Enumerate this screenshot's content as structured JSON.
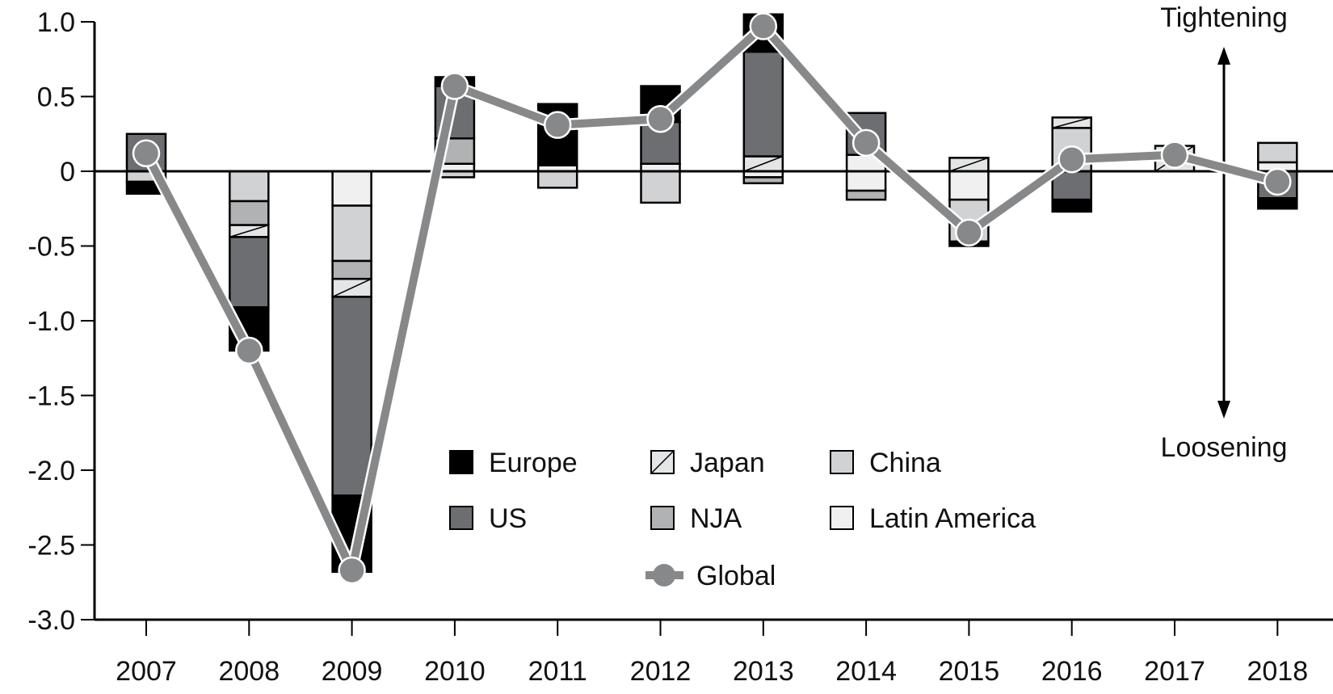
{
  "chart_data": {
    "type": "bar",
    "subtype": "stacked bar with line overlay",
    "title": "",
    "xlabel": "",
    "ylabel": "",
    "ylim": [
      -3.0,
      1.0
    ],
    "yticks": [
      "1.0",
      "0.5",
      "0",
      "-0.5",
      "-1.0",
      "-1.5",
      "-2.0",
      "-2.5",
      "-3.0"
    ],
    "ytick_values": [
      1.0,
      0.5,
      0,
      -0.5,
      -1.0,
      -1.5,
      -2.0,
      -2.5,
      -3.0
    ],
    "categories": [
      "2007",
      "2008",
      "2009",
      "2010",
      "2011",
      "2012",
      "2013",
      "2014",
      "2015",
      "2016",
      "2017",
      "2018"
    ],
    "grid": false,
    "legend_position": "bottom-center inside plot",
    "series": [
      {
        "name": "Europe",
        "color": "#000000"
      },
      {
        "name": "Japan",
        "color": "#e4e5e6",
        "pattern": "diagonal"
      },
      {
        "name": "China",
        "color": "#d1d2d4"
      },
      {
        "name": "US",
        "color": "#6d6e71"
      },
      {
        "name": "NJA",
        "color": "#b1b2b4"
      },
      {
        "name": "Latin America",
        "color": "#f0f0f0"
      }
    ],
    "stacks": [
      {
        "year": "2007",
        "pos": [
          [
            "US",
            0.25
          ]
        ],
        "neg": [
          [
            "China",
            -0.07
          ],
          [
            "Europe",
            -0.08
          ]
        ]
      },
      {
        "year": "2008",
        "pos": [],
        "neg": [
          [
            "China",
            -0.2
          ],
          [
            "NJA",
            -0.16
          ],
          [
            "Japan",
            -0.08
          ],
          [
            "US",
            -0.47
          ],
          [
            "Europe",
            -0.29
          ]
        ]
      },
      {
        "year": "2009",
        "pos": [],
        "neg": [
          [
            "Latin America",
            -0.23
          ],
          [
            "China",
            -0.37
          ],
          [
            "NJA",
            -0.12
          ],
          [
            "Japan",
            -0.12
          ],
          [
            "US",
            -1.33
          ],
          [
            "Europe",
            -0.51
          ]
        ]
      },
      {
        "year": "2010",
        "pos": [
          [
            "Latin America",
            0.05
          ],
          [
            "NJA",
            0.17
          ],
          [
            "US",
            0.35
          ],
          [
            "Europe",
            0.06
          ]
        ],
        "neg": [
          [
            "China",
            -0.04
          ]
        ]
      },
      {
        "year": "2011",
        "pos": [
          [
            "Latin America",
            0.04
          ],
          [
            "Europe",
            0.41
          ]
        ],
        "neg": [
          [
            "China",
            -0.11
          ]
        ]
      },
      {
        "year": "2012",
        "pos": [
          [
            "Latin America",
            0.05
          ],
          [
            "US",
            0.28
          ],
          [
            "Europe",
            0.24
          ]
        ],
        "neg": [
          [
            "China",
            -0.21
          ]
        ]
      },
      {
        "year": "2013",
        "pos": [
          [
            "Japan",
            0.1
          ],
          [
            "US",
            0.7
          ],
          [
            "Europe",
            0.25
          ]
        ],
        "neg": [
          [
            "Latin America",
            -0.04
          ],
          [
            "NJA",
            -0.04
          ]
        ]
      },
      {
        "year": "2014",
        "pos": [
          [
            "Latin America",
            0.11
          ],
          [
            "US",
            0.28
          ]
        ],
        "neg": [
          [
            "Latin America",
            -0.13
          ],
          [
            "NJA",
            -0.06
          ]
        ]
      },
      {
        "year": "2015",
        "pos": [
          [
            "Japan",
            0.09
          ]
        ],
        "neg": [
          [
            "Latin America",
            -0.19
          ],
          [
            "China",
            -0.28
          ],
          [
            "Europe",
            -0.03
          ]
        ]
      },
      {
        "year": "2016",
        "pos": [
          [
            "China",
            0.29
          ],
          [
            "Japan",
            0.07
          ]
        ],
        "neg": [
          [
            "US",
            -0.19
          ],
          [
            "Europe",
            -0.08
          ]
        ]
      },
      {
        "year": "2017",
        "pos": [
          [
            "Japan",
            0.17
          ]
        ],
        "neg": []
      },
      {
        "year": "2018",
        "pos": [
          [
            "Latin America",
            0.06
          ],
          [
            "China",
            0.13
          ]
        ],
        "neg": [
          [
            "US",
            -0.18
          ],
          [
            "Europe",
            -0.07
          ]
        ]
      }
    ],
    "line_series": {
      "name": "Global",
      "color": "#87888a",
      "values": [
        0.12,
        -1.2,
        -2.67,
        0.57,
        0.31,
        0.35,
        0.97,
        0.19,
        -0.41,
        0.08,
        0.11,
        -0.07
      ]
    },
    "legend": [
      "Europe",
      "Japan",
      "China",
      "US",
      "NJA",
      "Latin America",
      "Global"
    ],
    "annotations": {
      "top": "Tightening",
      "bottom": "Loosening"
    }
  }
}
